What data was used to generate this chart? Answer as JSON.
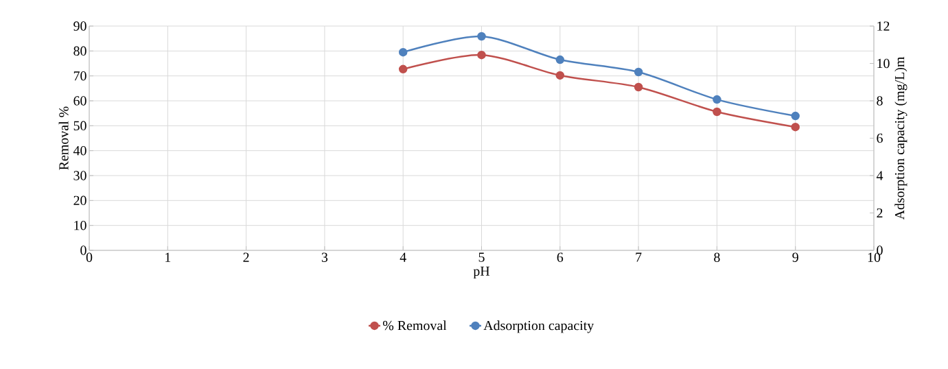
{
  "chart_data": {
    "type": "line",
    "xlabel": "pH",
    "ylabel": "Removal %",
    "y2label": "Adsorption capacity (mg/L)m",
    "x": [
      4,
      5,
      6,
      7,
      8,
      9
    ],
    "series": [
      {
        "name": "% Removal",
        "color": "#c0504d",
        "values": [
          72.7,
          78.4,
          70.2,
          65.5,
          55.6,
          49.5
        ]
      },
      {
        "name": "Adsorption capacity",
        "color": "#4f81bd",
        "axis": "y2",
        "values": [
          10.6,
          11.45,
          10.2,
          9.54,
          8.07,
          7.19
        ]
      }
    ],
    "xlim": [
      0,
      10
    ],
    "xticks": [
      0,
      1,
      2,
      3,
      4,
      5,
      6,
      7,
      8,
      9,
      10
    ],
    "ylim": [
      0,
      90
    ],
    "yticks": [
      0,
      10,
      20,
      30,
      40,
      50,
      60,
      70,
      80,
      90
    ],
    "y2lim": [
      0,
      12
    ],
    "y2ticks": [
      0,
      2,
      4,
      6,
      8,
      10,
      12
    ],
    "grid": true,
    "legend": "bottom",
    "marker": "circle",
    "line_style": "solid"
  }
}
